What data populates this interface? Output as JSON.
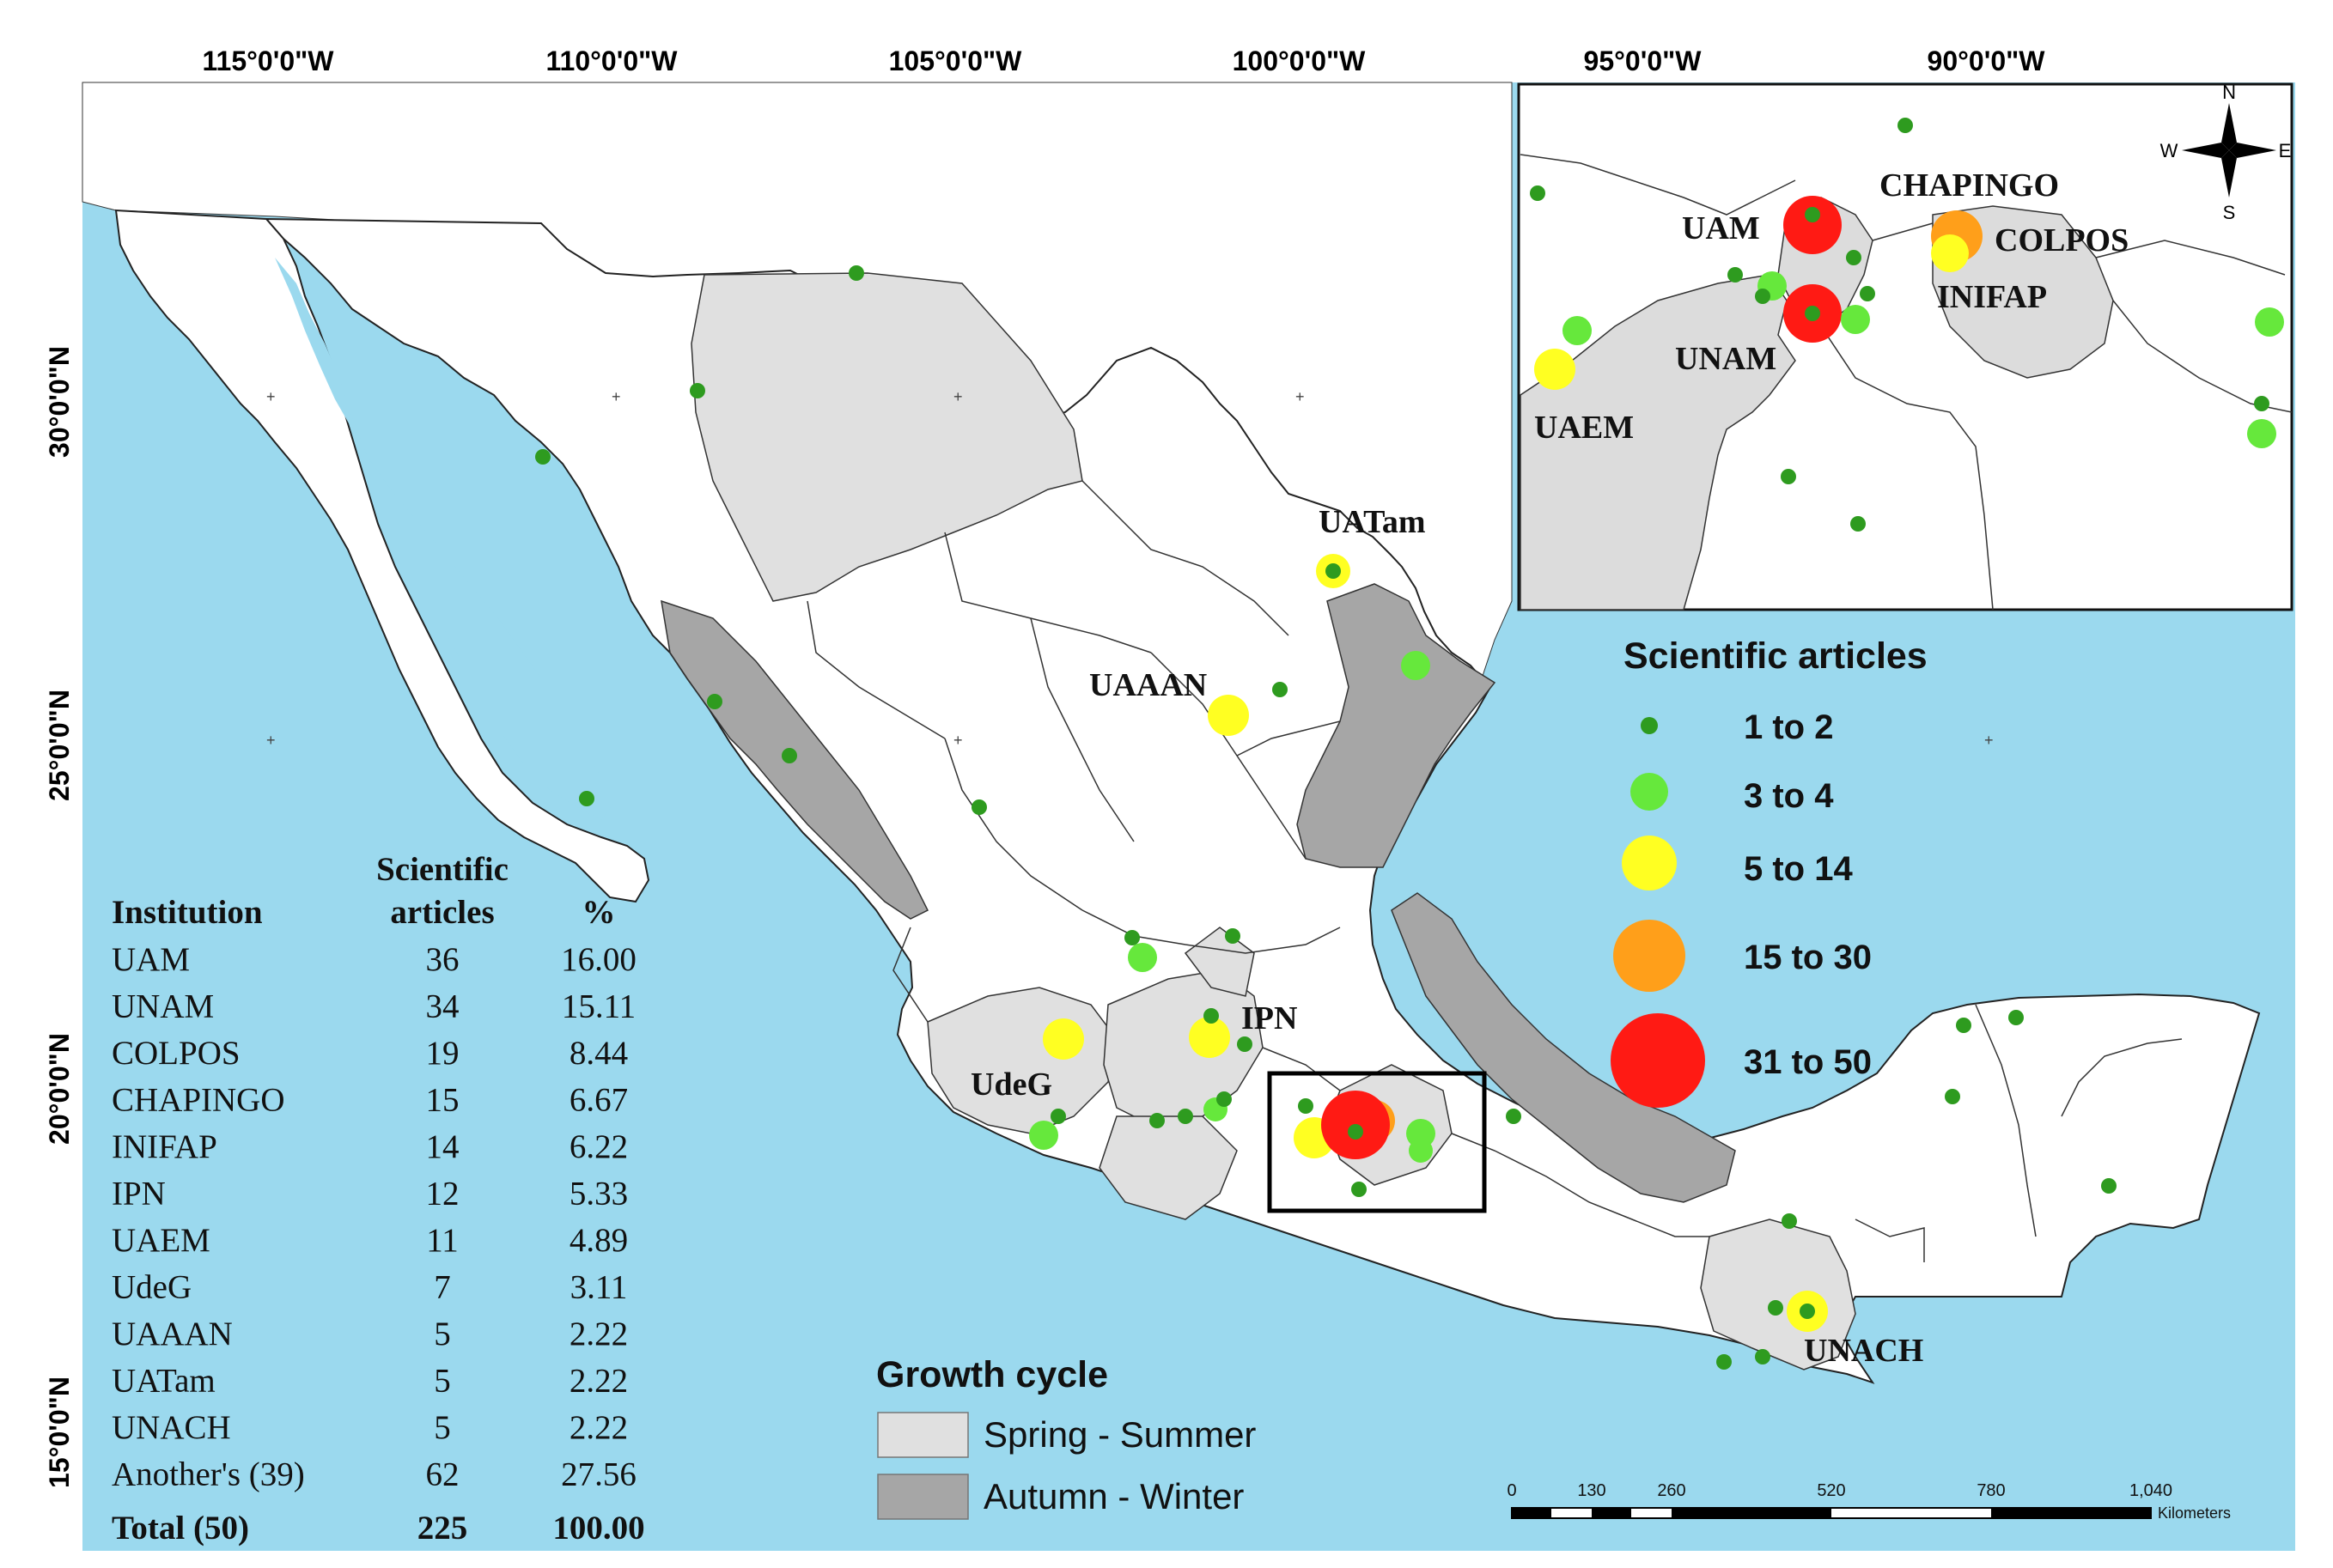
{
  "axes": {
    "top": [
      "115°0'0\"W",
      "110°0'0\"W",
      "105°0'0\"W",
      "100°0'0\"W",
      "95°0'0\"W",
      "90°0'0\"W"
    ],
    "left": [
      "30°0'0\"N",
      "25°0'0\"N",
      "20°0'0\"N",
      "15°0'0\"N"
    ]
  },
  "legend_articles": {
    "title": "Scientific articles",
    "items": [
      {
        "label": "1 to 2",
        "color": "#2e9b1f"
      },
      {
        "label": "3 to 4",
        "color": "#66e83c"
      },
      {
        "label": "5 to 14",
        "color": "#ffff22"
      },
      {
        "label": "15  to 30",
        "color": "#ff9f1a"
      },
      {
        "label": "31 to 50",
        "color": "#ff1a14"
      }
    ]
  },
  "legend_growth": {
    "title": "Growth cycle",
    "items": [
      {
        "label": "Spring - Summer",
        "color": "#e0e0e0"
      },
      {
        "label": "Autumn - Winter",
        "color": "#a6a6a6"
      }
    ]
  },
  "map_labels": [
    "UATam",
    "UAAAN",
    "IPN",
    "UdeG",
    "UNACH"
  ],
  "inset_labels": [
    "CHAPINGO",
    "UAM",
    "COLPOS",
    "INIFAP",
    "UNAM",
    "UAEM"
  ],
  "compass": {
    "n": "N",
    "s": "S",
    "e": "E",
    "w": "W"
  },
  "scale_bar": {
    "ticks": [
      "0",
      "130",
      "260",
      "520",
      "780",
      "1,040"
    ],
    "unit": "Kilometers"
  },
  "table": {
    "headers": {
      "institution": "Institution",
      "articles_top": "Scientific",
      "articles_bottom": "articles",
      "percent": "%"
    },
    "rows": [
      [
        "UAM",
        "36",
        "16.00"
      ],
      [
        "UNAM",
        "34",
        "15.11"
      ],
      [
        "COLPOS",
        "19",
        "8.44"
      ],
      [
        "CHAPINGO",
        "15",
        "6.67"
      ],
      [
        "INIFAP",
        "14",
        "6.22"
      ],
      [
        "IPN",
        "12",
        "5.33"
      ],
      [
        "UAEM",
        "11",
        "4.89"
      ],
      [
        "UdeG",
        "7",
        "3.11"
      ],
      [
        "UAAAN",
        "5",
        "2.22"
      ],
      [
        "UATam",
        "5",
        "2.22"
      ],
      [
        "UNACH",
        "5",
        "2.22"
      ],
      [
        "Another's (39)",
        "62",
        "27.56"
      ]
    ],
    "total": [
      "Total (50)",
      "225",
      "100.00"
    ]
  },
  "colors": {
    "sea": "#9bd9ee",
    "land_default": "#ffffff",
    "spring_summer": "#e0e0e0",
    "autumn_winter": "#a6a6a6"
  }
}
